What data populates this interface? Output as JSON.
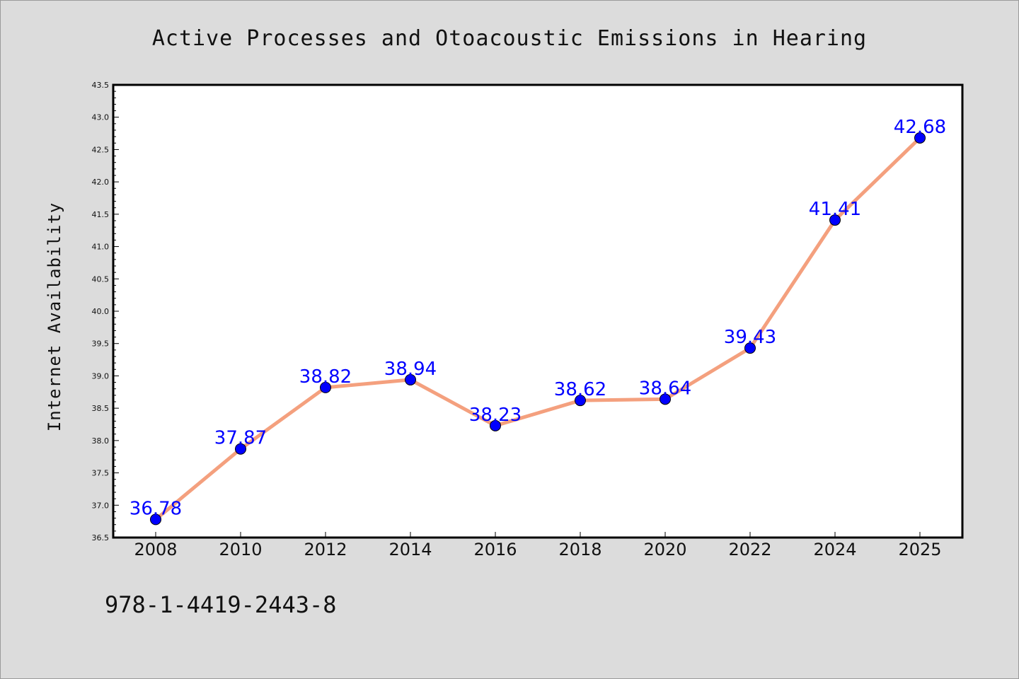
{
  "chart_data": {
    "type": "line",
    "title": "Active Processes and Otoacoustic Emissions in Hearing",
    "xlabel": "",
    "ylabel": "Internet Availability",
    "categories": [
      "2008",
      "2010",
      "2012",
      "2014",
      "2016",
      "2018",
      "2020",
      "2022",
      "2024",
      "2025"
    ],
    "series": [
      {
        "values": [
          36.78,
          37.87,
          38.82,
          38.94,
          38.23,
          38.62,
          38.64,
          39.43,
          41.41,
          42.68
        ],
        "data_labels": [
          "36.78",
          "37.87",
          "38.82",
          "38.94",
          "38.23",
          "38.62",
          "38.64",
          "39.43",
          "41.41",
          "42.68"
        ]
      }
    ],
    "ylim": [
      36.5,
      43.5
    ],
    "yticks": [
      "36.5",
      "37.0",
      "37.5",
      "38.0",
      "38.5",
      "39.0",
      "39.5",
      "40.0",
      "40.5",
      "41.0",
      "41.5",
      "42.0",
      "42.5",
      "43.0",
      "43.5"
    ],
    "grid": false,
    "legend": "none",
    "colors": {
      "line": "#f4a07e",
      "marker": "#0000ff",
      "label": "#0000ff",
      "plot_background": "#ffffff",
      "page_background": "#dcdcdc"
    }
  },
  "footer": {
    "isbn": "978-1-4419-2443-8"
  }
}
